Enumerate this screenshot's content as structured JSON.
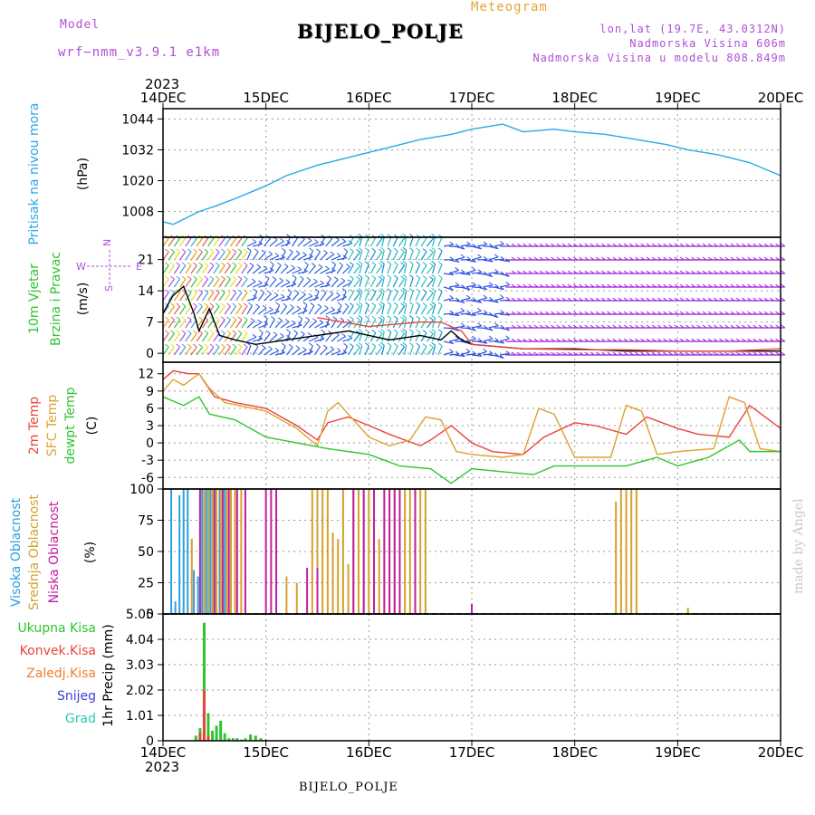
{
  "header": {
    "model_label": "Model",
    "model_name": "wrf−nmm_v3.9.1  e1km",
    "product": "Meteogram",
    "station": "BIJELO_POLJE",
    "location": "lon,lat (19.7E, 43.0312N)",
    "elevation": "Nadmorska Visina 606m",
    "model_elevation": "Nadmorska Visina u modelu 808.849m"
  },
  "footer": {
    "station": "BIJELO_POLJE",
    "watermark": "made by Angel"
  },
  "time_axis": {
    "year": "2023",
    "ticks": [
      "14DEC",
      "15DEC",
      "16DEC",
      "17DEC",
      "18DEC",
      "19DEC",
      "20DEC"
    ]
  },
  "colors": {
    "pressure": "#2aa7ea",
    "temp": "#e8453b",
    "sfc": "#e0a030",
    "dew": "#2ec52e",
    "cloud_high": "#2a9fe0",
    "cloud_mid": "#d6a02c",
    "cloud_low": "#c21fa0",
    "rain_total": "#2ec52e",
    "rain_conv": "#e8453b",
    "rain_frozen": "#f08030",
    "snow": "#4040d8",
    "hail": "#2ec8b0",
    "wind_dir_label": "#b04fd6"
  },
  "chart_data": [
    {
      "type": "line",
      "panel": "pressure",
      "ylabel_lines": [
        "Pritisak na nivou mora",
        "(hPa)"
      ],
      "yticks": [
        1008,
        1020,
        1032,
        1044
      ],
      "ylim": [
        998,
        1048
      ],
      "series": [
        {
          "color": "#2aa7ea",
          "x": [
            0,
            0.1,
            0.2,
            0.35,
            0.5,
            0.7,
            1.0,
            1.2,
            1.5,
            1.8,
            2.0,
            2.3,
            2.5,
            2.8,
            3.0,
            3.3,
            3.5,
            3.8,
            4.0,
            4.3,
            4.6,
            4.9,
            5.1,
            5.4,
            5.7,
            6.0
          ],
          "y": [
            1004,
            1003,
            1005,
            1008,
            1010,
            1013,
            1018,
            1022,
            1026,
            1029,
            1031,
            1034,
            1036,
            1038,
            1040,
            1042,
            1039,
            1040,
            1039,
            1038,
            1036,
            1034,
            1032,
            1030,
            1027,
            1022
          ]
        }
      ]
    },
    {
      "type": "line",
      "panel": "wind",
      "ylabel_lines": [
        "10m Vjetar",
        "Brzina i Pravac",
        "(m/s)"
      ],
      "dir_labels": [
        "N",
        "S",
        "W",
        "E"
      ],
      "yticks": [
        0,
        7,
        14,
        21
      ],
      "ylim": [
        -2,
        26
      ],
      "series": [
        {
          "name_role": "speed",
          "color": "#000000",
          "x": [
            0,
            0.1,
            0.2,
            0.3,
            0.35,
            0.45,
            0.55,
            0.7,
            0.9,
            1.2,
            1.5,
            1.8,
            2.0,
            2.2,
            2.5,
            2.7,
            2.8,
            2.9,
            3.0,
            3.5,
            4.0,
            4.5,
            5.0,
            5.5,
            6.0
          ],
          "y": [
            9,
            13,
            15,
            9,
            5,
            10,
            4,
            3,
            2,
            3,
            4,
            5,
            4,
            3,
            4,
            3,
            5,
            3,
            2,
            1,
            1,
            0.5,
            0.5,
            0.5,
            0.5
          ]
        },
        {
          "name_role": "gust",
          "color": "#e8453b",
          "x": [
            1.5,
            2.0,
            2.5,
            2.7,
            2.9,
            3.0,
            3.5,
            4.0,
            4.5,
            5.0,
            5.5,
            6.0
          ],
          "y": [
            8,
            6,
            7,
            7,
            5,
            2,
            1,
            0.8,
            0.8,
            0.5,
            0.5,
            1
          ]
        }
      ]
    },
    {
      "type": "line",
      "panel": "temperature",
      "ylabel_lines": [
        "2m Temp",
        "SFC Temp",
        "dewpt Temp",
        "(C)"
      ],
      "yticks": [
        -6,
        -3,
        0,
        3,
        6,
        9,
        12
      ],
      "ylim": [
        -8,
        14
      ],
      "series": [
        {
          "name": "2m Temp",
          "color": "#e8453b",
          "x": [
            0,
            0.1,
            0.25,
            0.35,
            0.5,
            0.7,
            1.0,
            1.3,
            1.5,
            1.6,
            1.8,
            2.0,
            2.2,
            2.5,
            2.6,
            2.8,
            3.0,
            3.2,
            3.5,
            3.7,
            4.0,
            4.2,
            4.5,
            4.7,
            5.0,
            5.2,
            5.5,
            5.7,
            6.0
          ],
          "y": [
            11,
            12.5,
            12,
            12,
            8,
            7,
            6,
            3,
            0.5,
            3.5,
            4.5,
            3,
            1.5,
            -0.5,
            0.5,
            3,
            0,
            -1.5,
            -2,
            1,
            3.5,
            3,
            1.5,
            4.5,
            2.5,
            1.5,
            1,
            6.5,
            2.5
          ]
        },
        {
          "name": "SFC Temp",
          "color": "#e0a030",
          "x": [
            0,
            0.1,
            0.2,
            0.35,
            0.45,
            0.6,
            1.0,
            1.3,
            1.5,
            1.6,
            1.7,
            1.85,
            2.0,
            2.2,
            2.4,
            2.55,
            2.7,
            2.85,
            3.0,
            3.3,
            3.5,
            3.65,
            3.8,
            4.0,
            4.35,
            4.5,
            4.65,
            4.8,
            5.0,
            5.35,
            5.5,
            5.65,
            5.8,
            6.0
          ],
          "y": [
            9,
            11,
            10,
            12,
            9.5,
            7,
            5.5,
            2.5,
            -0.5,
            5.5,
            7,
            4,
            1,
            -0.5,
            0.5,
            4.5,
            4,
            -1.5,
            -2,
            -2.5,
            -2,
            6,
            5,
            -2.5,
            -2.5,
            6.5,
            5.5,
            -2,
            -1.5,
            -1,
            8,
            7,
            -1,
            -1.5
          ]
        },
        {
          "name": "dewpt Temp",
          "color": "#2ec52e",
          "x": [
            0,
            0.2,
            0.35,
            0.45,
            0.7,
            1.0,
            1.3,
            1.6,
            2.0,
            2.3,
            2.6,
            2.8,
            3.0,
            3.3,
            3.6,
            3.8,
            4.2,
            4.5,
            4.8,
            5.0,
            5.3,
            5.6,
            5.7,
            6.0
          ],
          "y": [
            8,
            6.5,
            8,
            5,
            4,
            1,
            0,
            -1,
            -2,
            -4,
            -4.5,
            -7,
            -4.5,
            -5,
            -5.5,
            -4,
            -4,
            -4,
            -2.5,
            -4,
            -2.5,
            0.5,
            -1.5,
            -1.5
          ]
        }
      ]
    },
    {
      "type": "bar",
      "panel": "clouds",
      "ylabel_lines": [
        "Visoka Oblacnost",
        "Srednja Oblacnost",
        "Niska Oblacnost",
        "(%)"
      ],
      "yticks": [
        0,
        25,
        50,
        75,
        100
      ],
      "ylim": [
        0,
        100
      ],
      "series": [
        {
          "name": "Visoka Oblacnost",
          "color": "#2a9fe0",
          "x": [
            0.08,
            0.12,
            0.16,
            0.2,
            0.24,
            0.3,
            0.34,
            0.38,
            0.42,
            0.46,
            0.5,
            0.55,
            0.6
          ],
          "values": [
            100,
            10,
            95,
            100,
            100,
            35,
            30,
            100,
            100,
            100,
            100,
            100,
            100
          ]
        },
        {
          "name": "Srednja Oblacnost",
          "color": "#d6a02c",
          "x": [
            0.28,
            0.4,
            0.44,
            0.48,
            0.52,
            0.56,
            0.62,
            0.66,
            0.7,
            0.76,
            0.8,
            1.2,
            1.3,
            1.45,
            1.5,
            1.55,
            1.6,
            1.65,
            1.7,
            1.75,
            1.8,
            1.85,
            1.9,
            1.95,
            2.0,
            2.05,
            2.1,
            2.15,
            2.2,
            2.25,
            2.3,
            2.35,
            2.4,
            2.45,
            2.5,
            2.55,
            4.4,
            4.45,
            4.5,
            4.55,
            4.6,
            5.1
          ],
          "values": [
            60,
            100,
            100,
            100,
            100,
            100,
            100,
            100,
            100,
            100,
            100,
            30,
            25,
            100,
            100,
            100,
            100,
            65,
            60,
            100,
            40,
            100,
            100,
            100,
            100,
            100,
            60,
            100,
            100,
            100,
            100,
            100,
            100,
            100,
            100,
            100,
            90,
            100,
            100,
            100,
            100,
            5
          ]
        },
        {
          "name": "Niska Oblacnost",
          "color": "#c21fa0",
          "x": [
            0.36,
            0.5,
            0.58,
            0.64,
            0.72,
            0.8,
            1.0,
            1.05,
            1.1,
            1.4,
            1.5,
            1.85,
            1.95,
            2.05,
            2.15,
            2.2,
            2.25,
            2.3,
            2.45,
            3.0
          ],
          "values": [
            100,
            100,
            100,
            100,
            100,
            100,
            100,
            100,
            100,
            37,
            37,
            100,
            100,
            100,
            100,
            100,
            100,
            100,
            100,
            8
          ]
        }
      ]
    },
    {
      "type": "bar",
      "panel": "precipitation",
      "ylabel_lines": [
        "1hr Precip (mm)"
      ],
      "legend": [
        "Ukupna Kisa",
        "Konvek.Kisa",
        "Zaledj.Kisa",
        "Snijeg",
        "Grad"
      ],
      "yticks": [
        0,
        1.01,
        2.02,
        3.03,
        4.04,
        5.05
      ],
      "ylim": [
        0,
        5.05
      ],
      "series": [
        {
          "name": "Ukupna Kisa",
          "color": "#2ec52e",
          "x": [
            0.32,
            0.36,
            0.4,
            0.44,
            0.48,
            0.52,
            0.56,
            0.6,
            0.64,
            0.68,
            0.72,
            0.76,
            0.8,
            0.85,
            0.9,
            0.95,
            1.0
          ],
          "values": [
            0.2,
            0.5,
            4.7,
            1.1,
            0.4,
            0.6,
            0.8,
            0.3,
            0.1,
            0.1,
            0.1,
            0.05,
            0.1,
            0.25,
            0.2,
            0.1,
            0.05
          ]
        },
        {
          "name": "Konvek.Kisa",
          "color": "#e8453b",
          "x": [
            0.36,
            0.4,
            0.44
          ],
          "values": [
            0.3,
            2.0,
            0.2
          ]
        }
      ]
    }
  ]
}
